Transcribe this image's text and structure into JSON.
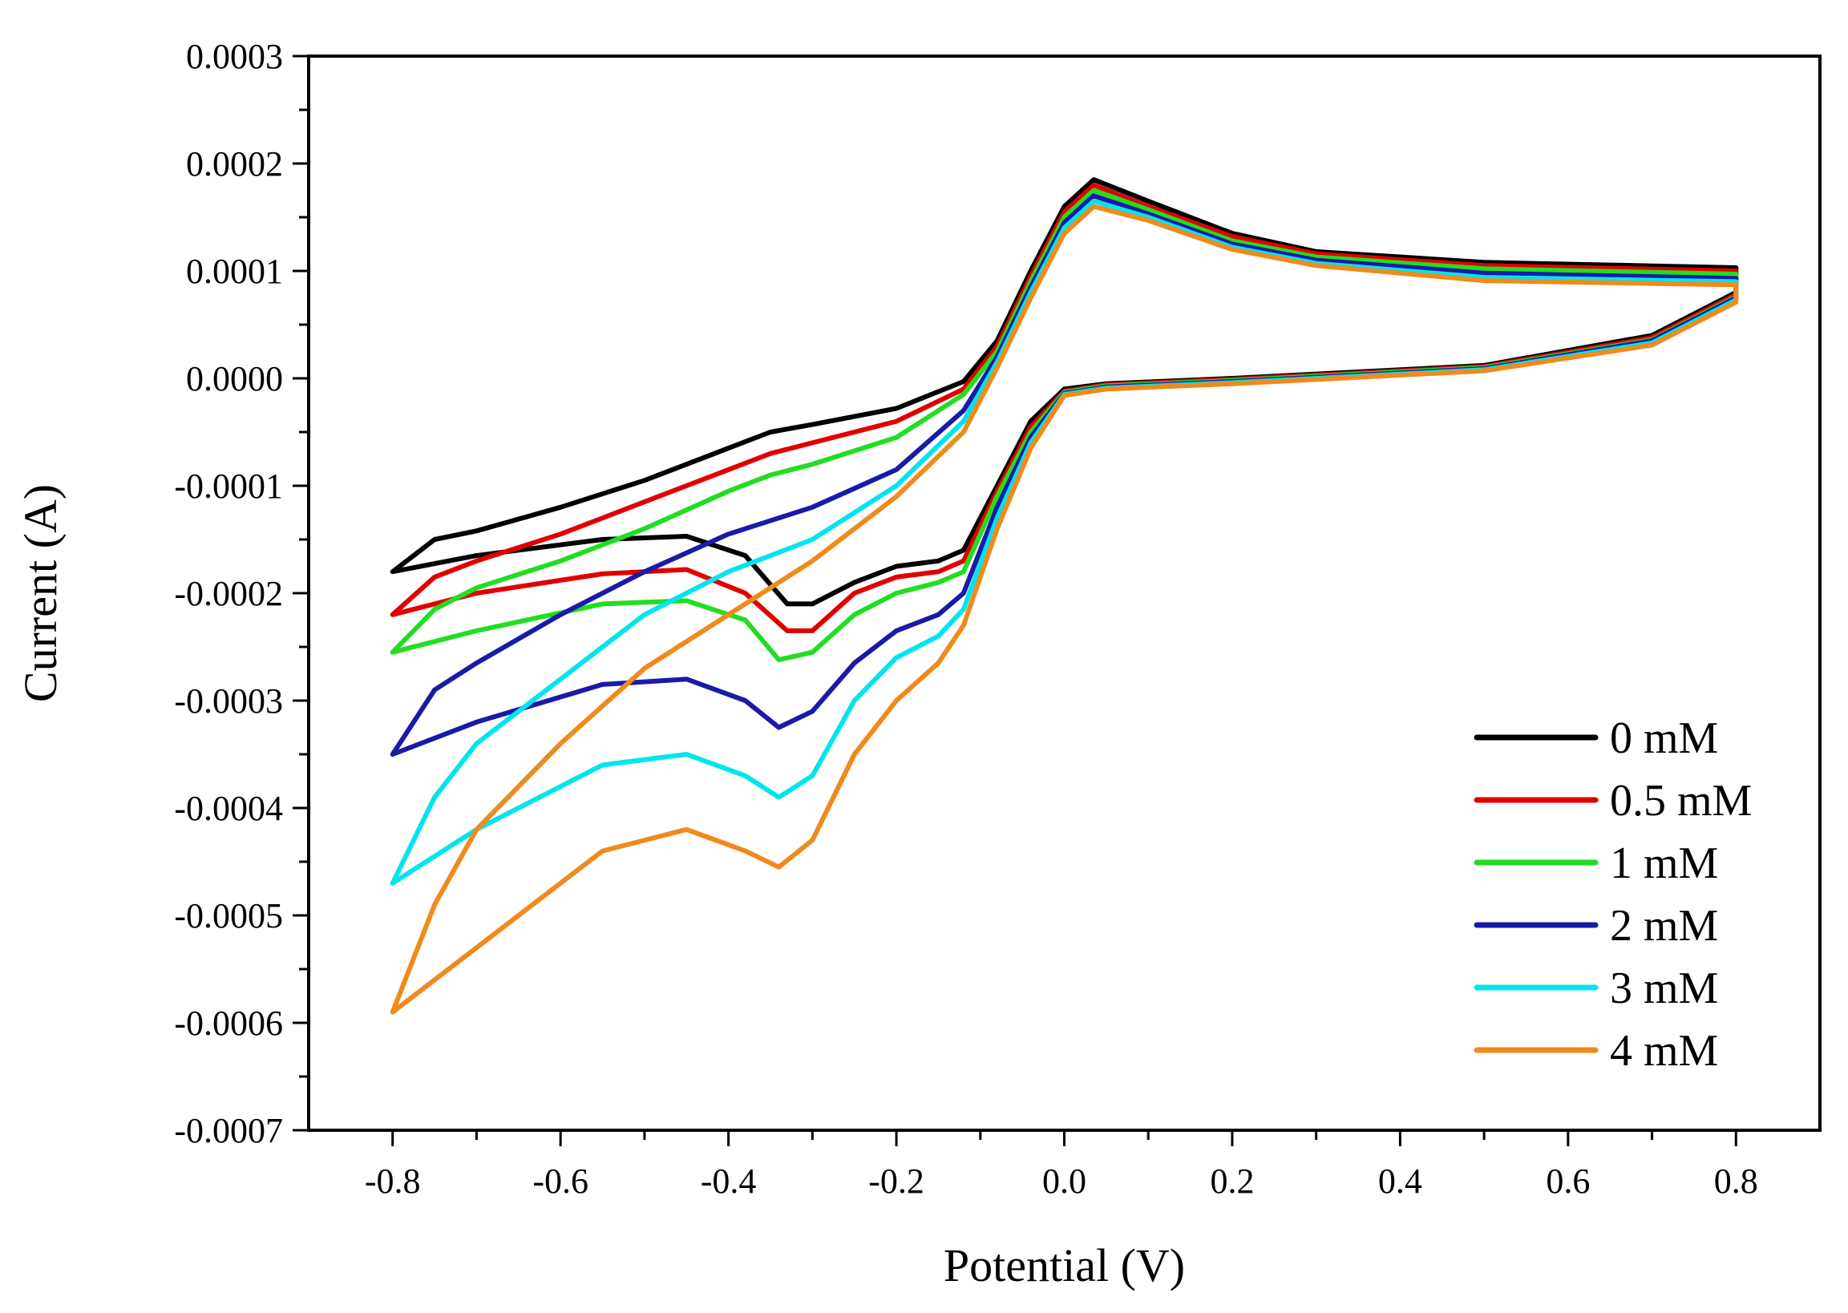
{
  "chart_data": {
    "type": "line",
    "title": "",
    "xlabel": "Potential (V)",
    "ylabel": "Current (A)",
    "xlim": [
      -0.9,
      0.9
    ],
    "ylim": [
      -0.0007,
      0.0003
    ],
    "x_ticks": [
      -0.8,
      -0.6,
      -0.4,
      -0.2,
      0.0,
      0.2,
      0.4,
      0.6,
      0.8
    ],
    "x_tick_labels": [
      "-0.8",
      "-0.6",
      "-0.4",
      "-0.2",
      "0.0",
      "0.2",
      "0.4",
      "0.6",
      "0.8"
    ],
    "y_ticks": [
      0.0003,
      0.0002,
      0.0001,
      0.0,
      -0.0001,
      -0.0002,
      -0.0003,
      -0.0004,
      -0.0005,
      -0.0006,
      -0.0007
    ],
    "y_tick_labels": [
      "0.0003",
      "0.0002",
      "0.0001",
      "0.0000",
      "-0.0001",
      "-0.0002",
      "-0.0003",
      "-0.0004",
      "-0.0005",
      "-0.0006",
      "-0.0007"
    ],
    "grid": false,
    "legend_position": "bottom-right",
    "series": [
      {
        "name": "0 mM",
        "color": "#000000",
        "points": [
          [
            -0.8,
            -0.00018
          ],
          [
            -0.75,
            -0.00015
          ],
          [
            -0.7,
            -0.000142
          ],
          [
            -0.6,
            -0.00012
          ],
          [
            -0.5,
            -9.5e-05
          ],
          [
            -0.4,
            -6.5e-05
          ],
          [
            -0.35,
            -5e-05
          ],
          [
            -0.3,
            -4.3e-05
          ],
          [
            -0.2,
            -2.8e-05
          ],
          [
            -0.12,
            -3e-06
          ],
          [
            -0.08,
            3.5e-05
          ],
          [
            -0.04,
            0.0001
          ],
          [
            0.0,
            0.00016
          ],
          [
            0.035,
            0.000185
          ],
          [
            0.1,
            0.000165
          ],
          [
            0.2,
            0.000135
          ],
          [
            0.3,
            0.000118
          ],
          [
            0.5,
            0.000108
          ],
          [
            0.8,
            0.000103
          ],
          [
            0.8,
            8e-05
          ],
          [
            0.7,
            4e-05
          ],
          [
            0.5,
            1.2e-05
          ],
          [
            0.2,
            0.0
          ],
          [
            0.05,
            -5e-06
          ],
          [
            0.0,
            -1e-05
          ],
          [
            -0.04,
            -4e-05
          ],
          [
            -0.08,
            -0.0001
          ],
          [
            -0.12,
            -0.00016
          ],
          [
            -0.15,
            -0.00017
          ],
          [
            -0.2,
            -0.000175
          ],
          [
            -0.25,
            -0.00019
          ],
          [
            -0.3,
            -0.00021
          ],
          [
            -0.33,
            -0.00021
          ],
          [
            -0.38,
            -0.000165
          ],
          [
            -0.45,
            -0.000147
          ],
          [
            -0.55,
            -0.00015
          ],
          [
            -0.7,
            -0.000165
          ],
          [
            -0.8,
            -0.00018
          ]
        ]
      },
      {
        "name": "0.5 mM",
        "color": "#e00000",
        "points": [
          [
            -0.8,
            -0.00022
          ],
          [
            -0.75,
            -0.000185
          ],
          [
            -0.7,
            -0.00017
          ],
          [
            -0.6,
            -0.000145
          ],
          [
            -0.5,
            -0.000115
          ],
          [
            -0.4,
            -8.5e-05
          ],
          [
            -0.35,
            -7e-05
          ],
          [
            -0.3,
            -6e-05
          ],
          [
            -0.2,
            -4e-05
          ],
          [
            -0.12,
            -1e-05
          ],
          [
            -0.08,
            3e-05
          ],
          [
            -0.04,
            9.5e-05
          ],
          [
            0.0,
            0.000155
          ],
          [
            0.035,
            0.00018
          ],
          [
            0.1,
            0.00016
          ],
          [
            0.2,
            0.000132
          ],
          [
            0.3,
            0.000116
          ],
          [
            0.5,
            0.000105
          ],
          [
            0.8,
            0.0001
          ],
          [
            0.8,
            7.8e-05
          ],
          [
            0.7,
            3.8e-05
          ],
          [
            0.5,
            1.1e-05
          ],
          [
            0.2,
            -1e-06
          ],
          [
            0.05,
            -6e-06
          ],
          [
            0.0,
            -1.2e-05
          ],
          [
            -0.04,
            -4.5e-05
          ],
          [
            -0.08,
            -0.000105
          ],
          [
            -0.12,
            -0.00017
          ],
          [
            -0.15,
            -0.00018
          ],
          [
            -0.2,
            -0.000185
          ],
          [
            -0.25,
            -0.0002
          ],
          [
            -0.3,
            -0.000235
          ],
          [
            -0.33,
            -0.000235
          ],
          [
            -0.38,
            -0.0002
          ],
          [
            -0.45,
            -0.000178
          ],
          [
            -0.55,
            -0.000182
          ],
          [
            -0.7,
            -0.0002
          ],
          [
            -0.8,
            -0.00022
          ]
        ]
      },
      {
        "name": "1 mM",
        "color": "#22dd22",
        "points": [
          [
            -0.8,
            -0.000255
          ],
          [
            -0.75,
            -0.000215
          ],
          [
            -0.7,
            -0.000195
          ],
          [
            -0.6,
            -0.00017
          ],
          [
            -0.5,
            -0.00014
          ],
          [
            -0.4,
            -0.000105
          ],
          [
            -0.35,
            -9e-05
          ],
          [
            -0.3,
            -8e-05
          ],
          [
            -0.2,
            -5.5e-05
          ],
          [
            -0.12,
            -1.5e-05
          ],
          [
            -0.08,
            2.5e-05
          ],
          [
            -0.04,
            9e-05
          ],
          [
            0.0,
            0.00015
          ],
          [
            0.035,
            0.000175
          ],
          [
            0.1,
            0.000157
          ],
          [
            0.2,
            0.000128
          ],
          [
            0.3,
            0.000113
          ],
          [
            0.5,
            0.000102
          ],
          [
            0.8,
            9.7e-05
          ],
          [
            0.8,
            7.6e-05
          ],
          [
            0.7,
            3.6e-05
          ],
          [
            0.5,
            1e-05
          ],
          [
            0.2,
            -2e-06
          ],
          [
            0.05,
            -7e-06
          ],
          [
            0.0,
            -1.3e-05
          ],
          [
            -0.04,
            -5e-05
          ],
          [
            -0.08,
            -0.00011
          ],
          [
            -0.12,
            -0.00018
          ],
          [
            -0.15,
            -0.00019
          ],
          [
            -0.2,
            -0.0002
          ],
          [
            -0.25,
            -0.00022
          ],
          [
            -0.3,
            -0.000255
          ],
          [
            -0.34,
            -0.000262
          ],
          [
            -0.38,
            -0.000225
          ],
          [
            -0.45,
            -0.000207
          ],
          [
            -0.55,
            -0.00021
          ],
          [
            -0.7,
            -0.000235
          ],
          [
            -0.8,
            -0.000255
          ]
        ]
      },
      {
        "name": "2 mM",
        "color": "#1a1aa8",
        "points": [
          [
            -0.8,
            -0.00035
          ],
          [
            -0.75,
            -0.00029
          ],
          [
            -0.7,
            -0.000265
          ],
          [
            -0.6,
            -0.00022
          ],
          [
            -0.5,
            -0.00018
          ],
          [
            -0.4,
            -0.000145
          ],
          [
            -0.3,
            -0.00012
          ],
          [
            -0.2,
            -8.5e-05
          ],
          [
            -0.12,
            -3e-05
          ],
          [
            -0.08,
            2e-05
          ],
          [
            -0.04,
            8.5e-05
          ],
          [
            0.0,
            0.000145
          ],
          [
            0.035,
            0.00017
          ],
          [
            0.1,
            0.000153
          ],
          [
            0.2,
            0.000125
          ],
          [
            0.3,
            0.00011
          ],
          [
            0.5,
            9.8e-05
          ],
          [
            0.8,
            9.3e-05
          ],
          [
            0.8,
            7.5e-05
          ],
          [
            0.7,
            3.5e-05
          ],
          [
            0.5,
            9e-06
          ],
          [
            0.2,
            -3e-06
          ],
          [
            0.05,
            -8e-06
          ],
          [
            0.0,
            -1.4e-05
          ],
          [
            -0.04,
            -5.5e-05
          ],
          [
            -0.08,
            -0.00012
          ],
          [
            -0.12,
            -0.0002
          ],
          [
            -0.15,
            -0.00022
          ],
          [
            -0.2,
            -0.000235
          ],
          [
            -0.25,
            -0.000265
          ],
          [
            -0.3,
            -0.00031
          ],
          [
            -0.34,
            -0.000325
          ],
          [
            -0.38,
            -0.0003
          ],
          [
            -0.45,
            -0.00028
          ],
          [
            -0.55,
            -0.000285
          ],
          [
            -0.7,
            -0.00032
          ],
          [
            -0.8,
            -0.00035
          ]
        ]
      },
      {
        "name": "3 mM",
        "color": "#00e5ee",
        "points": [
          [
            -0.8,
            -0.00047
          ],
          [
            -0.75,
            -0.00039
          ],
          [
            -0.7,
            -0.00034
          ],
          [
            -0.6,
            -0.00028
          ],
          [
            -0.5,
            -0.00022
          ],
          [
            -0.4,
            -0.00018
          ],
          [
            -0.3,
            -0.00015
          ],
          [
            -0.2,
            -0.0001
          ],
          [
            -0.12,
            -4e-05
          ],
          [
            -0.08,
            1.5e-05
          ],
          [
            -0.04,
            8e-05
          ],
          [
            0.0,
            0.00014
          ],
          [
            0.035,
            0.000165
          ],
          [
            0.1,
            0.00015
          ],
          [
            0.2,
            0.000122
          ],
          [
            0.3,
            0.000107
          ],
          [
            0.5,
            9.4e-05
          ],
          [
            0.8,
            9e-05
          ],
          [
            0.8,
            7.3e-05
          ],
          [
            0.7,
            3.3e-05
          ],
          [
            0.5,
            8e-06
          ],
          [
            0.2,
            -4e-06
          ],
          [
            0.05,
            -9e-06
          ],
          [
            0.0,
            -1.5e-05
          ],
          [
            -0.04,
            -6e-05
          ],
          [
            -0.08,
            -0.00013
          ],
          [
            -0.12,
            -0.000215
          ],
          [
            -0.15,
            -0.00024
          ],
          [
            -0.2,
            -0.00026
          ],
          [
            -0.25,
            -0.0003
          ],
          [
            -0.3,
            -0.00037
          ],
          [
            -0.34,
            -0.00039
          ],
          [
            -0.38,
            -0.00037
          ],
          [
            -0.45,
            -0.00035
          ],
          [
            -0.55,
            -0.00036
          ],
          [
            -0.7,
            -0.00042
          ],
          [
            -0.8,
            -0.00047
          ]
        ]
      },
      {
        "name": "4 mM",
        "color": "#f08a1c",
        "points": [
          [
            -0.8,
            -0.00059
          ],
          [
            -0.75,
            -0.00049
          ],
          [
            -0.7,
            -0.00042
          ],
          [
            -0.6,
            -0.00034
          ],
          [
            -0.5,
            -0.00027
          ],
          [
            -0.4,
            -0.00022
          ],
          [
            -0.3,
            -0.00017
          ],
          [
            -0.2,
            -0.00011
          ],
          [
            -0.12,
            -5e-05
          ],
          [
            -0.08,
            1e-05
          ],
          [
            -0.04,
            7.5e-05
          ],
          [
            0.0,
            0.000135
          ],
          [
            0.035,
            0.00016
          ],
          [
            0.1,
            0.000147
          ],
          [
            0.2,
            0.00012
          ],
          [
            0.3,
            0.000105
          ],
          [
            0.5,
            9.1e-05
          ],
          [
            0.8,
            8.7e-05
          ],
          [
            0.8,
            7.1e-05
          ],
          [
            0.7,
            3.1e-05
          ],
          [
            0.5,
            7e-06
          ],
          [
            0.2,
            -5e-06
          ],
          [
            0.05,
            -1e-05
          ],
          [
            0.0,
            -1.6e-05
          ],
          [
            -0.04,
            -6.5e-05
          ],
          [
            -0.08,
            -0.00014
          ],
          [
            -0.12,
            -0.00023
          ],
          [
            -0.15,
            -0.000265
          ],
          [
            -0.2,
            -0.0003
          ],
          [
            -0.25,
            -0.00035
          ],
          [
            -0.3,
            -0.00043
          ],
          [
            -0.34,
            -0.000455
          ],
          [
            -0.38,
            -0.00044
          ],
          [
            -0.45,
            -0.00042
          ],
          [
            -0.55,
            -0.00044
          ],
          [
            -0.7,
            -0.00053
          ],
          [
            -0.8,
            -0.00059
          ]
        ]
      }
    ]
  }
}
